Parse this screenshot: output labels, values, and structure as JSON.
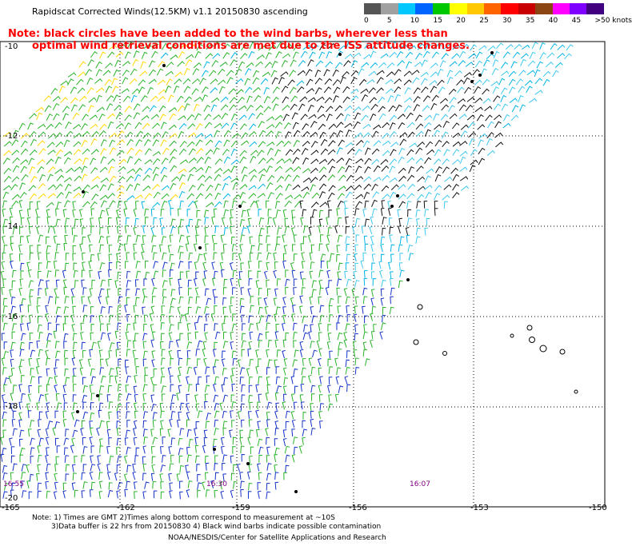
{
  "title": "Rapidscat Corrected Winds(12.5KM) v1.1 20150830 ascending",
  "note_line1": "Note: black circles have been added to the wind barbs, wherever less than",
  "note_line2": "optimal wind retrieval conditions are met due to the ISS attitude changes.",
  "legend": {
    "labels": [
      "0",
      "5",
      "10",
      "15",
      "20",
      "25",
      "30",
      "35",
      "40",
      "45",
      ">50 knots"
    ],
    "colors": [
      "#555555",
      "#a0a0a0",
      "#00c8ff",
      "#0064ff",
      "#00c800",
      "#ffff00",
      "#ffc800",
      "#ff6400",
      "#ff0000",
      "#c80000",
      "#8b4513",
      "#ff00ff",
      "#8000ff",
      "#400080"
    ]
  },
  "axes": {
    "lat_labels": [
      "-10",
      "-12",
      "-14",
      "-16",
      "-18",
      "-20"
    ],
    "lon_labels": [
      "-165",
      "-162",
      "-159",
      "-156",
      "-153",
      "-150"
    ]
  },
  "time_labels": [
    "16:55",
    "16:30",
    "16:07"
  ],
  "footer": {
    "line1": "Note: 1) Times are GMT 2)Times along bottom correspond to measurement at ~10S",
    "line2": "3)Data buffer is 22 hrs from 20150830 4) Black wind barbs indicate possible contamination",
    "line3": "NOAA/NESDIS/Center for Satellite Applications and Research"
  }
}
